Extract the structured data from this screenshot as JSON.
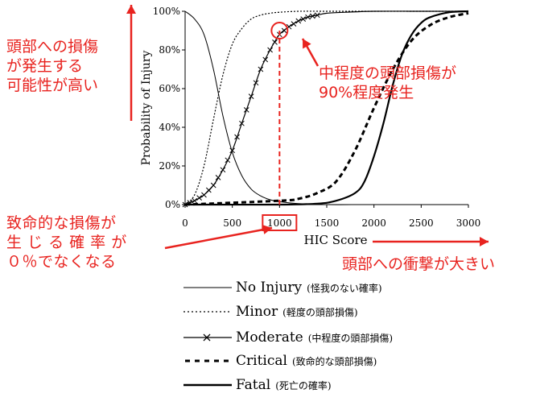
{
  "chart_data": {
    "type": "line",
    "xlabel": "HIC Score",
    "ylabel": "Probability of Injury",
    "xlim": [
      0,
      3000
    ],
    "ylim": [
      0,
      100
    ],
    "x_ticks": [
      "0",
      "500",
      "1000",
      "1500",
      "2000",
      "2500",
      "3000"
    ],
    "y_ticks": [
      "0%",
      "20%",
      "40%",
      "60%",
      "80%",
      "100%"
    ],
    "grid": false,
    "series": [
      {
        "name": "No Injury",
        "note": "(怪我のない確率)",
        "style": "solid-thin",
        "x": [
          0,
          100,
          200,
          300,
          400,
          500,
          600,
          700,
          800,
          900,
          1000,
          1200,
          1500,
          2000,
          3000
        ],
        "y": [
          100,
          96,
          88,
          70,
          46,
          27,
          15,
          8,
          4.5,
          2.5,
          1.5,
          0.5,
          0,
          0,
          0
        ]
      },
      {
        "name": "Minor",
        "note": "(軽度の頭部損傷)",
        "style": "dotted",
        "x": [
          0,
          100,
          200,
          300,
          400,
          500,
          600,
          700,
          800,
          900,
          1000,
          1200,
          1500,
          2000,
          3000
        ],
        "y": [
          0,
          5,
          20,
          44,
          67,
          83,
          91,
          96,
          98,
          99,
          99.5,
          100,
          100,
          100,
          100
        ]
      },
      {
        "name": "Moderate",
        "note": "(中程度の頭部損傷)",
        "style": "cross",
        "x": [
          0,
          100,
          200,
          300,
          400,
          500,
          600,
          700,
          800,
          900,
          1000,
          1100,
          1200,
          1300,
          1400,
          1500,
          1700,
          2000,
          2500,
          3000
        ],
        "y": [
          0,
          2,
          5,
          10,
          18,
          28,
          42,
          56,
          70,
          80,
          88,
          92,
          95,
          97,
          98,
          99,
          99.5,
          100,
          100,
          100
        ]
      },
      {
        "name": "Critical",
        "note": "(致命的な頭部損傷)",
        "style": "dashed",
        "x": [
          0,
          1000,
          1200,
          1400,
          1600,
          1800,
          2000,
          2200,
          2400,
          2600,
          2800,
          3000
        ],
        "y": [
          0,
          2,
          3,
          6,
          12,
          28,
          50,
          70,
          85,
          93,
          97,
          99
        ]
      },
      {
        "name": "Fatal",
        "note": "(死亡の確率)",
        "style": "solid-thick",
        "x": [
          0,
          1000,
          1400,
          1600,
          1800,
          1900,
          2000,
          2100,
          2200,
          2300,
          2400,
          2500,
          2600,
          2800,
          3000
        ],
        "y": [
          0,
          0,
          0.5,
          2,
          6,
          12,
          25,
          42,
          62,
          78,
          88,
          94,
          97,
          99.5,
          100
        ]
      }
    ],
    "annotations": {
      "left_top": "頭部への損傷\nが発生する\n可能性が高い",
      "right_top": "中程度の頭部損傷が\n90%程度発生",
      "left_bottom": "致命的な損傷が\n生 じ る 確 率 が\n０％でなくなる",
      "right_bottom": "頭部への衝撃が大きい"
    }
  },
  "colors": {
    "annotation_red": "#e8231f",
    "line": "#000000"
  }
}
